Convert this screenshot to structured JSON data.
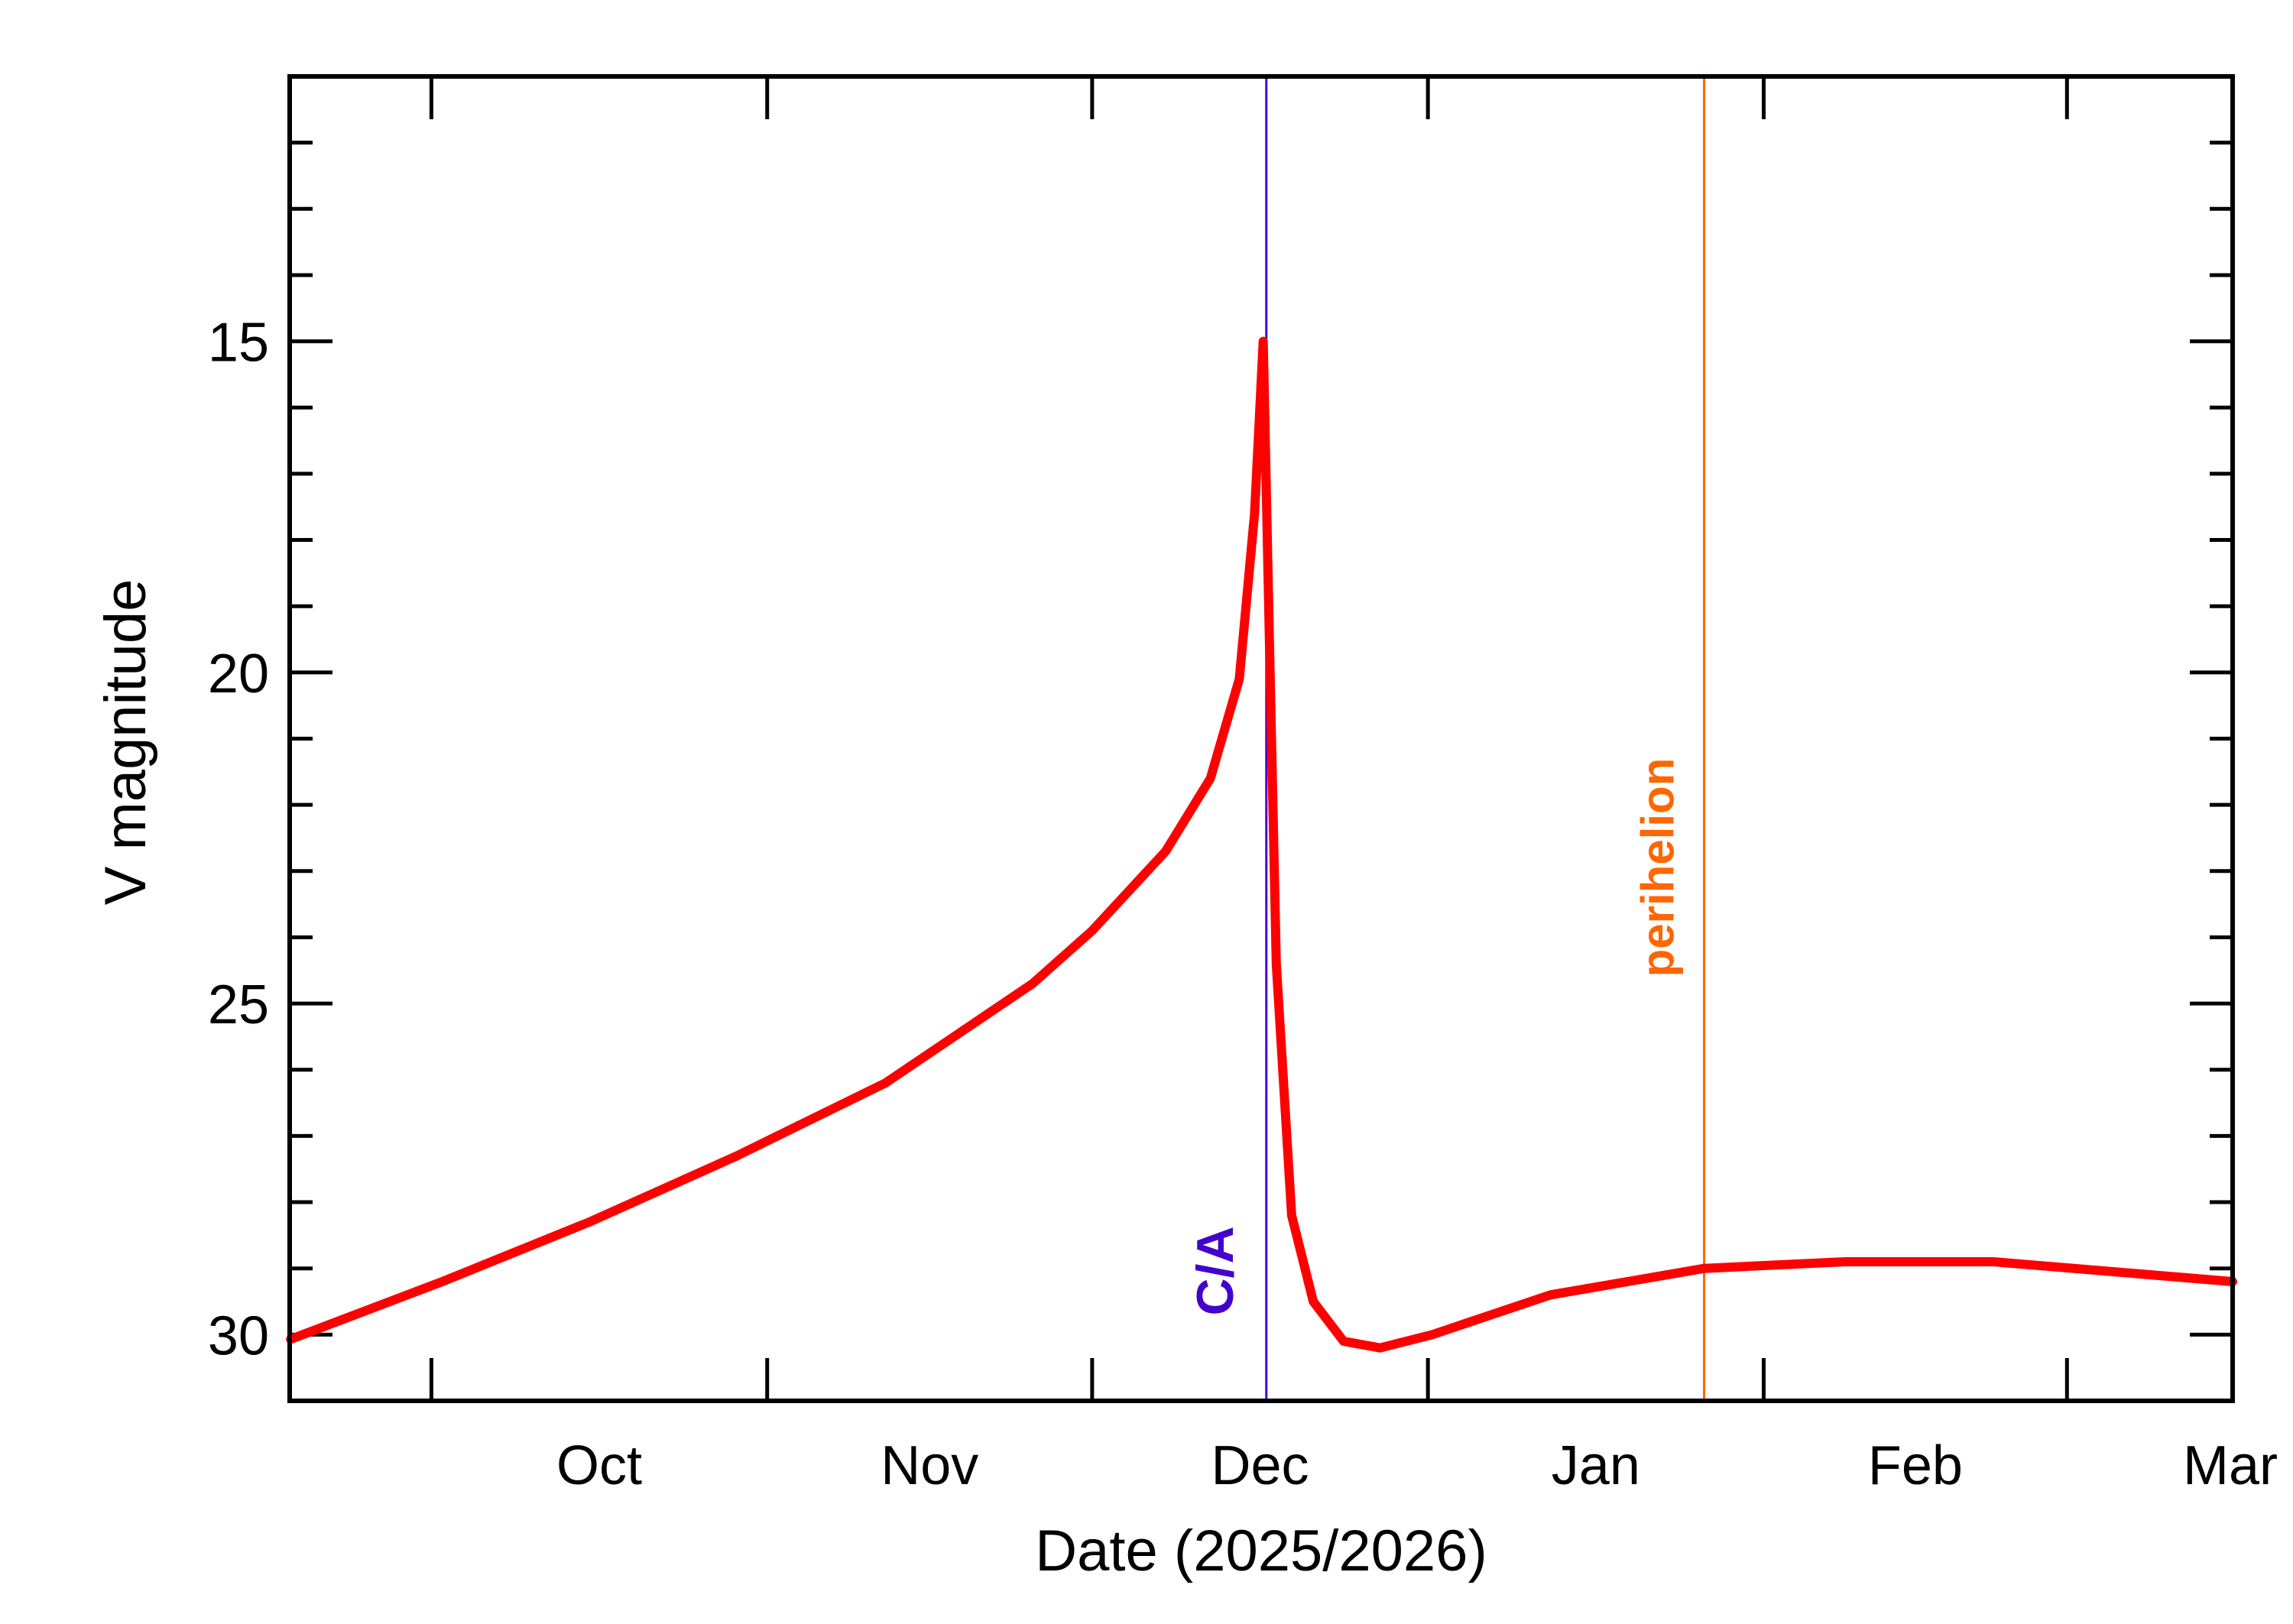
{
  "chart_data": {
    "type": "line",
    "title": "",
    "xlabel": "Date (2025/2026)",
    "ylabel": "V magnitude",
    "xlim": [
      "2025-09-17T22:00",
      "2026-03-16T07:00"
    ],
    "ylim": [
      31,
      11
    ],
    "y_inverted": true,
    "grid": false,
    "y_major_ticks": [
      15,
      20,
      25,
      30
    ],
    "y_tick_labels": [
      "15",
      "20",
      "25",
      "30"
    ],
    "y_minor_step": 1,
    "x_month_ticks": [
      "2025-10-01",
      "2025-11-01",
      "2025-12-01",
      "2026-01-01",
      "2026-02-01",
      "2026-03-01"
    ],
    "x_tick_labels": [
      {
        "label": "Oct",
        "month_start": "2025-10-01",
        "month_end": "2025-11-01"
      },
      {
        "label": "Nov",
        "month_start": "2025-11-01",
        "month_end": "2025-12-01"
      },
      {
        "label": "Dec",
        "month_start": "2025-12-01",
        "month_end": "2026-01-01"
      },
      {
        "label": "Jan",
        "month_start": "2026-01-01",
        "month_end": "2026-02-01"
      },
      {
        "label": "Feb",
        "month_start": "2026-02-01",
        "month_end": "2026-03-01"
      },
      {
        "label": "Mar",
        "month_start": "2026-03-01",
        "month_end": "2026-04-01"
      }
    ],
    "series": [
      {
        "color": "#ff0000",
        "points": [
          [
            "2025-09-18T00:00",
            30.07
          ],
          [
            "2025-10-02T00:00",
            29.2
          ],
          [
            "2025-10-15T14:00",
            28.3
          ],
          [
            "2025-10-29T05:00",
            27.3
          ],
          [
            "2025-11-11T22:00",
            26.2
          ],
          [
            "2025-11-25T12:00",
            24.7
          ],
          [
            "2025-12-01T00:00",
            23.9
          ],
          [
            "2025-12-07T19:00",
            22.7
          ],
          [
            "2025-12-11T22:00",
            21.6
          ],
          [
            "2025-12-14T14:00",
            20.1
          ],
          [
            "2025-12-16T00:00",
            17.6
          ],
          [
            "2025-12-16T19:00",
            15.0
          ],
          [
            "2025-12-17T10:00",
            19.9
          ],
          [
            "2025-12-18T00:00",
            24.4
          ],
          [
            "2025-12-19T10:00",
            28.2
          ],
          [
            "2025-12-21T10:00",
            29.5
          ],
          [
            "2025-12-24T05:00",
            30.1
          ],
          [
            "2025-12-27T14:00",
            30.2
          ],
          [
            "2026-01-01T10:00",
            30.0
          ],
          [
            "2026-01-12T07:00",
            29.4
          ],
          [
            "2026-01-26T12:00",
            29.0
          ],
          [
            "2026-02-08T14:00",
            28.9
          ],
          [
            "2026-02-22T05:00",
            28.9
          ],
          [
            "2026-03-16T07:00",
            29.2
          ]
        ]
      }
    ],
    "annotations": [
      {
        "label": "C/A",
        "date": "2025-12-17T02:00",
        "color": "#4400cc"
      },
      {
        "label": "perihelion",
        "date": "2026-01-26T12:00",
        "color": "#ff6600"
      }
    ]
  }
}
